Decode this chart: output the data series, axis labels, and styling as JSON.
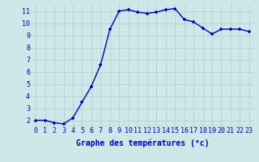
{
  "hours": [
    0,
    1,
    2,
    3,
    4,
    5,
    6,
    7,
    8,
    9,
    10,
    11,
    12,
    13,
    14,
    15,
    16,
    17,
    18,
    19,
    20,
    21,
    22,
    23
  ],
  "temps": [
    2.0,
    2.0,
    1.8,
    1.7,
    2.2,
    3.5,
    4.8,
    6.6,
    9.5,
    11.0,
    11.1,
    10.9,
    10.8,
    10.9,
    11.1,
    11.2,
    10.3,
    10.1,
    9.6,
    9.1,
    9.5,
    9.5,
    9.5,
    9.3
  ],
  "line_color": "#0000bb",
  "marker": "+",
  "bg_color": "#cce8e8",
  "grid_color": "#b0cccc",
  "xlabel": "Graphe des températures (°c)",
  "xlabel_color": "#0000bb",
  "tick_color": "#0000bb",
  "ylim": [
    1.5,
    11.5
  ],
  "yticks": [
    2,
    3,
    4,
    5,
    6,
    7,
    8,
    9,
    10,
    11
  ],
  "xlim": [
    -0.5,
    23.5
  ],
  "markersize": 3.5,
  "linewidth": 1.0,
  "tick_fontsize": 6.0,
  "xlabel_fontsize": 7.0
}
